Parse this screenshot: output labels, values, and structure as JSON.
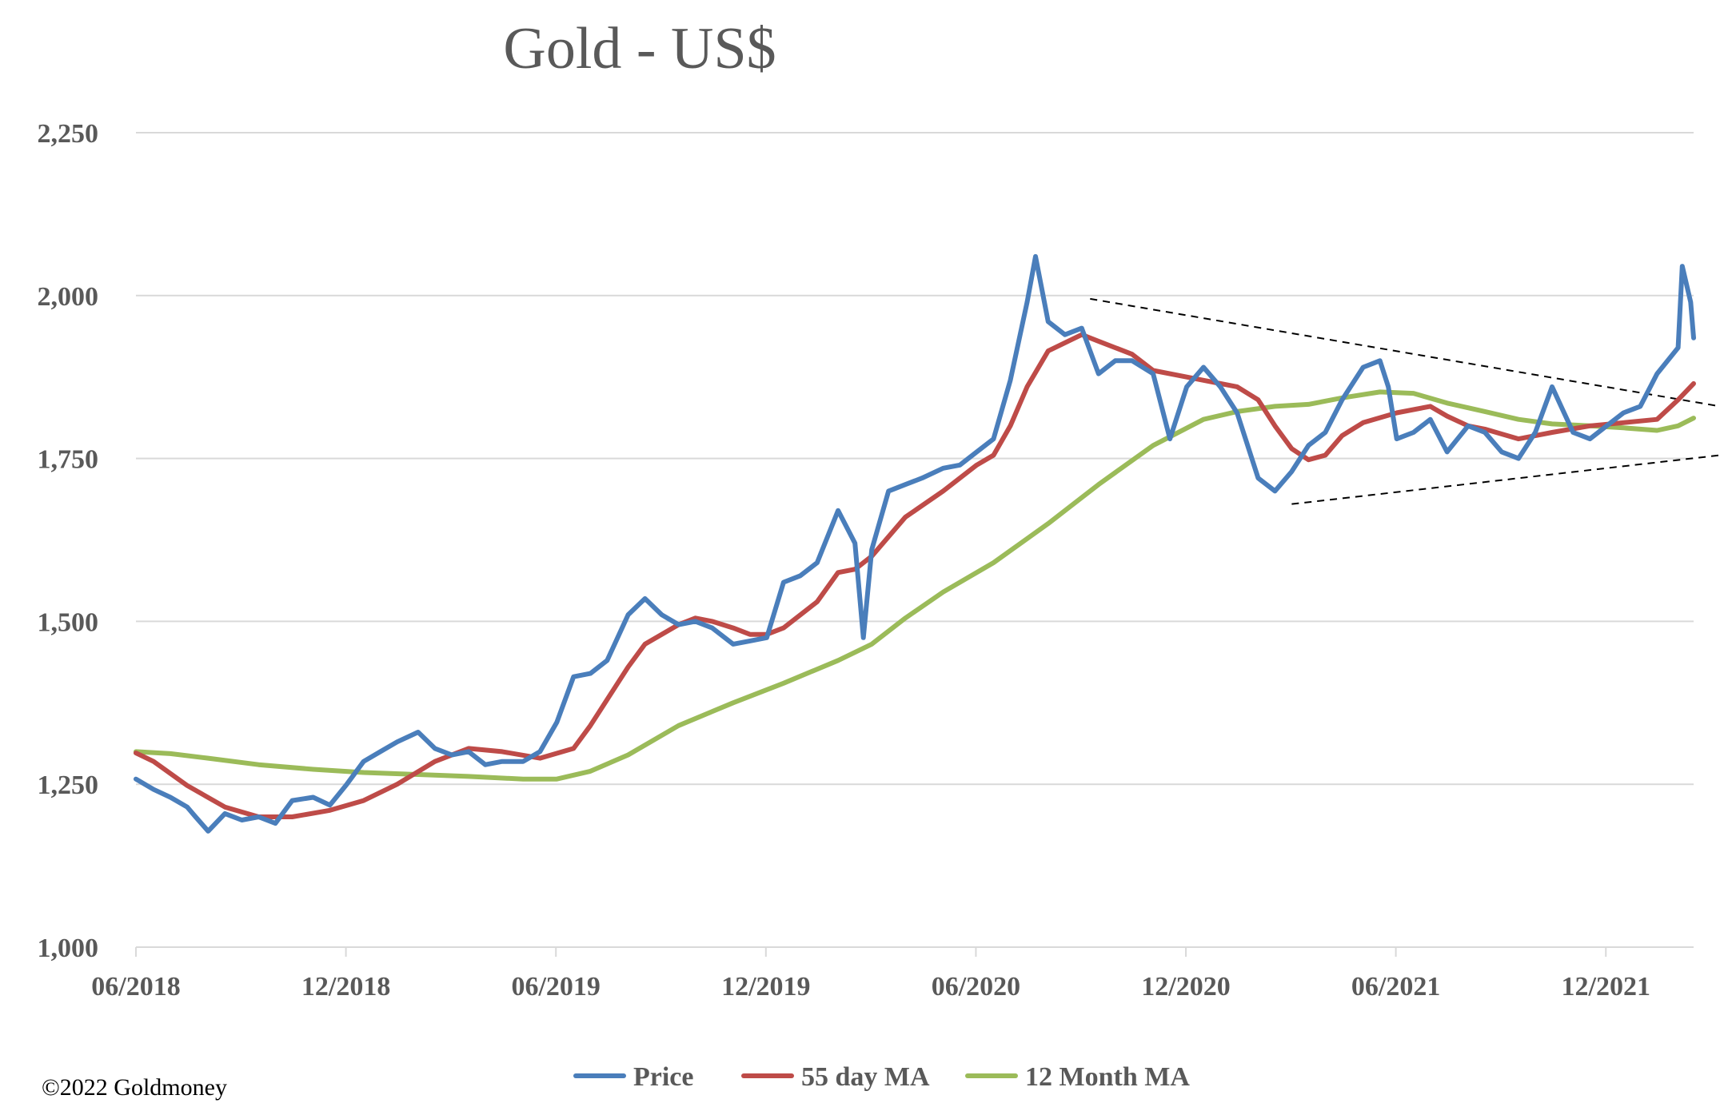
{
  "chart_data": {
    "type": "line",
    "title": "Gold - US$",
    "xlabel": "",
    "ylabel": "",
    "ylim": [
      1000,
      2250
    ],
    "yticks": [
      1000,
      1250,
      1500,
      1750,
      2000,
      2250
    ],
    "ytick_labels": [
      "1,000",
      "1,250",
      "1,500",
      "1,750",
      "2,000",
      "2,250"
    ],
    "xlim": [
      2018.458,
      2022.167
    ],
    "xticks": [
      2018.458,
      2018.958,
      2019.458,
      2019.958,
      2020.458,
      2020.958,
      2021.458,
      2021.958
    ],
    "xtick_labels": [
      "06/2018",
      "12/2018",
      "06/2019",
      "12/2019",
      "06/2020",
      "12/2020",
      "06/2021",
      "12/2021"
    ],
    "grid": "horizontal",
    "legend_position": "bottom",
    "series": [
      {
        "name": "Price",
        "color": "#4a7ebb",
        "points": [
          [
            2018.458,
            1258
          ],
          [
            2018.5,
            1242
          ],
          [
            2018.54,
            1230
          ],
          [
            2018.58,
            1215
          ],
          [
            2018.6,
            1200
          ],
          [
            2018.63,
            1178
          ],
          [
            2018.67,
            1205
          ],
          [
            2018.71,
            1195
          ],
          [
            2018.75,
            1200
          ],
          [
            2018.79,
            1190
          ],
          [
            2018.83,
            1225
          ],
          [
            2018.88,
            1230
          ],
          [
            2018.92,
            1218
          ],
          [
            2018.96,
            1250
          ],
          [
            2019.0,
            1285
          ],
          [
            2019.04,
            1300
          ],
          [
            2019.08,
            1315
          ],
          [
            2019.13,
            1330
          ],
          [
            2019.17,
            1305
          ],
          [
            2019.21,
            1295
          ],
          [
            2019.25,
            1300
          ],
          [
            2019.29,
            1280
          ],
          [
            2019.33,
            1285
          ],
          [
            2019.38,
            1285
          ],
          [
            2019.42,
            1300
          ],
          [
            2019.46,
            1345
          ],
          [
            2019.5,
            1415
          ],
          [
            2019.54,
            1420
          ],
          [
            2019.58,
            1440
          ],
          [
            2019.63,
            1510
          ],
          [
            2019.67,
            1535
          ],
          [
            2019.71,
            1510
          ],
          [
            2019.75,
            1495
          ],
          [
            2019.79,
            1500
          ],
          [
            2019.83,
            1490
          ],
          [
            2019.88,
            1465
          ],
          [
            2019.92,
            1470
          ],
          [
            2019.96,
            1475
          ],
          [
            2020.0,
            1560
          ],
          [
            2020.04,
            1570
          ],
          [
            2020.08,
            1590
          ],
          [
            2020.13,
            1670
          ],
          [
            2020.17,
            1620
          ],
          [
            2020.19,
            1475
          ],
          [
            2020.21,
            1610
          ],
          [
            2020.25,
            1700
          ],
          [
            2020.29,
            1710
          ],
          [
            2020.33,
            1720
          ],
          [
            2020.38,
            1735
          ],
          [
            2020.42,
            1740
          ],
          [
            2020.46,
            1760
          ],
          [
            2020.5,
            1780
          ],
          [
            2020.54,
            1870
          ],
          [
            2020.58,
            1990
          ],
          [
            2020.6,
            2060
          ],
          [
            2020.63,
            1960
          ],
          [
            2020.67,
            1940
          ],
          [
            2020.71,
            1950
          ],
          [
            2020.75,
            1880
          ],
          [
            2020.79,
            1900
          ],
          [
            2020.83,
            1900
          ],
          [
            2020.88,
            1880
          ],
          [
            2020.92,
            1780
          ],
          [
            2020.96,
            1860
          ],
          [
            2021.0,
            1890
          ],
          [
            2021.04,
            1860
          ],
          [
            2021.08,
            1820
          ],
          [
            2021.13,
            1720
          ],
          [
            2021.17,
            1700
          ],
          [
            2021.21,
            1730
          ],
          [
            2021.25,
            1770
          ],
          [
            2021.29,
            1790
          ],
          [
            2021.33,
            1840
          ],
          [
            2021.38,
            1890
          ],
          [
            2021.42,
            1900
          ],
          [
            2021.44,
            1860
          ],
          [
            2021.46,
            1780
          ],
          [
            2021.5,
            1790
          ],
          [
            2021.54,
            1810
          ],
          [
            2021.58,
            1760
          ],
          [
            2021.63,
            1800
          ],
          [
            2021.67,
            1790
          ],
          [
            2021.71,
            1760
          ],
          [
            2021.75,
            1750
          ],
          [
            2021.79,
            1790
          ],
          [
            2021.83,
            1860
          ],
          [
            2021.88,
            1790
          ],
          [
            2021.92,
            1780
          ],
          [
            2021.96,
            1800
          ],
          [
            2022.0,
            1820
          ],
          [
            2022.04,
            1830
          ],
          [
            2022.08,
            1880
          ],
          [
            2022.13,
            1920
          ],
          [
            2022.14,
            2045
          ],
          [
            2022.16,
            1990
          ],
          [
            2022.167,
            1935
          ]
        ]
      },
      {
        "name": "55 day MA",
        "color": "#be4b48",
        "points": [
          [
            2018.458,
            1298
          ],
          [
            2018.5,
            1285
          ],
          [
            2018.58,
            1248
          ],
          [
            2018.67,
            1215
          ],
          [
            2018.75,
            1200
          ],
          [
            2018.83,
            1200
          ],
          [
            2018.92,
            1210
          ],
          [
            2019.0,
            1225
          ],
          [
            2019.08,
            1250
          ],
          [
            2019.17,
            1285
          ],
          [
            2019.25,
            1305
          ],
          [
            2019.33,
            1300
          ],
          [
            2019.42,
            1290
          ],
          [
            2019.5,
            1305
          ],
          [
            2019.54,
            1340
          ],
          [
            2019.63,
            1430
          ],
          [
            2019.67,
            1465
          ],
          [
            2019.75,
            1495
          ],
          [
            2019.79,
            1505
          ],
          [
            2019.83,
            1500
          ],
          [
            2019.88,
            1490
          ],
          [
            2019.92,
            1480
          ],
          [
            2019.96,
            1480
          ],
          [
            2020.0,
            1490
          ],
          [
            2020.08,
            1530
          ],
          [
            2020.13,
            1575
          ],
          [
            2020.17,
            1580
          ],
          [
            2020.21,
            1600
          ],
          [
            2020.29,
            1660
          ],
          [
            2020.38,
            1700
          ],
          [
            2020.46,
            1740
          ],
          [
            2020.5,
            1755
          ],
          [
            2020.54,
            1800
          ],
          [
            2020.58,
            1860
          ],
          [
            2020.63,
            1915
          ],
          [
            2020.71,
            1940
          ],
          [
            2020.75,
            1930
          ],
          [
            2020.83,
            1910
          ],
          [
            2020.88,
            1885
          ],
          [
            2020.96,
            1875
          ],
          [
            2021.0,
            1870
          ],
          [
            2021.08,
            1860
          ],
          [
            2021.13,
            1840
          ],
          [
            2021.17,
            1800
          ],
          [
            2021.21,
            1765
          ],
          [
            2021.25,
            1748
          ],
          [
            2021.29,
            1755
          ],
          [
            2021.33,
            1785
          ],
          [
            2021.38,
            1805
          ],
          [
            2021.46,
            1820
          ],
          [
            2021.54,
            1830
          ],
          [
            2021.58,
            1815
          ],
          [
            2021.63,
            1800
          ],
          [
            2021.67,
            1795
          ],
          [
            2021.75,
            1780
          ],
          [
            2021.79,
            1785
          ],
          [
            2021.83,
            1790
          ],
          [
            2021.92,
            1800
          ],
          [
            2022.0,
            1805
          ],
          [
            2022.08,
            1810
          ],
          [
            2022.13,
            1840
          ],
          [
            2022.167,
            1865
          ]
        ]
      },
      {
        "name": "12 Month MA",
        "color": "#9bbb59",
        "points": [
          [
            2018.458,
            1300
          ],
          [
            2018.54,
            1297
          ],
          [
            2018.63,
            1290
          ],
          [
            2018.75,
            1280
          ],
          [
            2018.88,
            1273
          ],
          [
            2019.0,
            1268
          ],
          [
            2019.13,
            1265
          ],
          [
            2019.25,
            1262
          ],
          [
            2019.38,
            1258
          ],
          [
            2019.46,
            1258
          ],
          [
            2019.54,
            1270
          ],
          [
            2019.63,
            1295
          ],
          [
            2019.75,
            1340
          ],
          [
            2019.88,
            1375
          ],
          [
            2020.0,
            1405
          ],
          [
            2020.13,
            1440
          ],
          [
            2020.21,
            1465
          ],
          [
            2020.29,
            1505
          ],
          [
            2020.38,
            1545
          ],
          [
            2020.5,
            1590
          ],
          [
            2020.63,
            1650
          ],
          [
            2020.75,
            1710
          ],
          [
            2020.88,
            1770
          ],
          [
            2021.0,
            1810
          ],
          [
            2021.08,
            1822
          ],
          [
            2021.17,
            1830
          ],
          [
            2021.25,
            1833
          ],
          [
            2021.33,
            1843
          ],
          [
            2021.42,
            1852
          ],
          [
            2021.5,
            1850
          ],
          [
            2021.58,
            1835
          ],
          [
            2021.67,
            1822
          ],
          [
            2021.75,
            1810
          ],
          [
            2021.83,
            1803
          ],
          [
            2021.92,
            1800
          ],
          [
            2022.0,
            1797
          ],
          [
            2022.08,
            1793
          ],
          [
            2022.13,
            1800
          ],
          [
            2022.167,
            1812
          ]
        ]
      }
    ],
    "trendlines": [
      {
        "points": [
          [
            2020.73,
            1995
          ],
          [
            2022.23,
            1830
          ]
        ]
      },
      {
        "points": [
          [
            2021.21,
            1680
          ],
          [
            2022.23,
            1755
          ]
        ]
      }
    ]
  },
  "copyright": "©2022 Goldmoney"
}
